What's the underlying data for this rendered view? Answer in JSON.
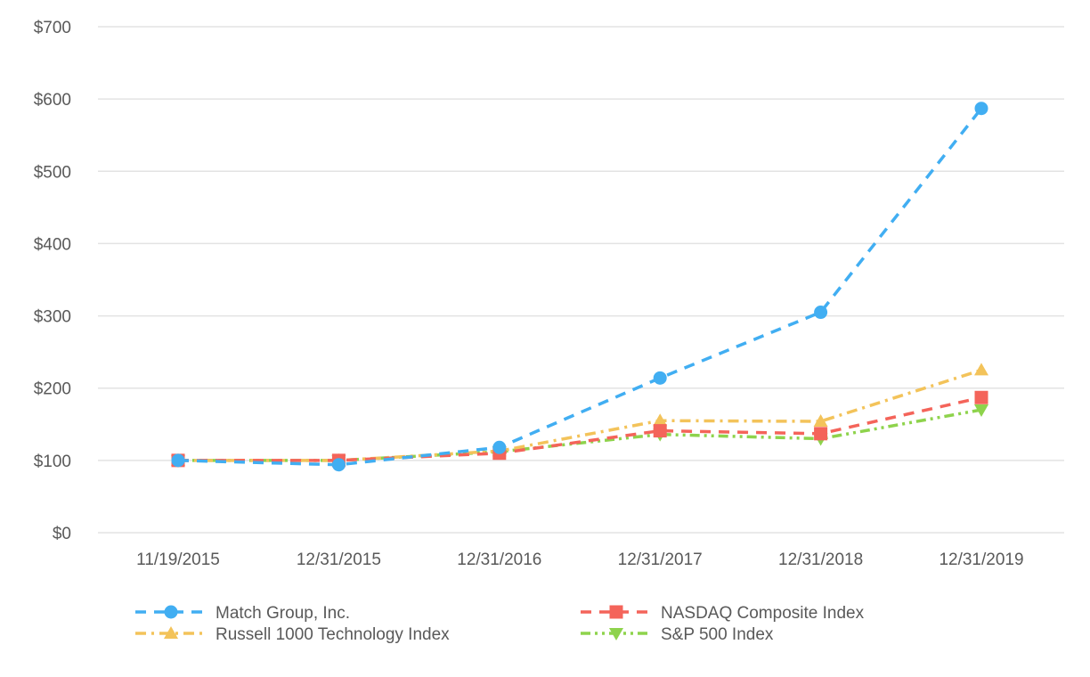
{
  "chart_data": {
    "type": "line",
    "title": "",
    "xlabel": "",
    "ylabel": "",
    "categories": [
      "11/19/2015",
      "12/31/2015",
      "12/31/2016",
      "12/31/2017",
      "12/31/2018",
      "12/31/2019"
    ],
    "ylim": [
      0,
      700
    ],
    "y_ticks": [
      0,
      100,
      200,
      300,
      400,
      500,
      600,
      700
    ],
    "y_tick_labels": [
      "$0",
      "$100",
      "$200",
      "$300",
      "$400",
      "$500",
      "$600",
      "$700"
    ],
    "grid": "horizontal",
    "legend_position": "bottom",
    "series": [
      {
        "name": "Match Group, Inc.",
        "values": [
          100,
          94,
          118,
          214,
          305,
          587
        ],
        "color": "#41aef2",
        "marker": "circle",
        "dash": "dashed"
      },
      {
        "name": "NASDAQ Composite Index",
        "values": [
          100,
          100,
          110,
          141,
          137,
          187
        ],
        "color": "#f4645a",
        "marker": "square",
        "dash": "dashed"
      },
      {
        "name": "Russell 1000 Technology Index",
        "values": [
          100,
          100,
          113,
          155,
          154,
          225
        ],
        "color": "#f3c35a",
        "marker": "triangle-up",
        "dash": "dash-dot"
      },
      {
        "name": "S&P 500 Index",
        "values": [
          100,
          100,
          112,
          136,
          130,
          170
        ],
        "color": "#8ed34c",
        "marker": "triangle-down",
        "dash": "dash-dot-dot"
      }
    ]
  }
}
